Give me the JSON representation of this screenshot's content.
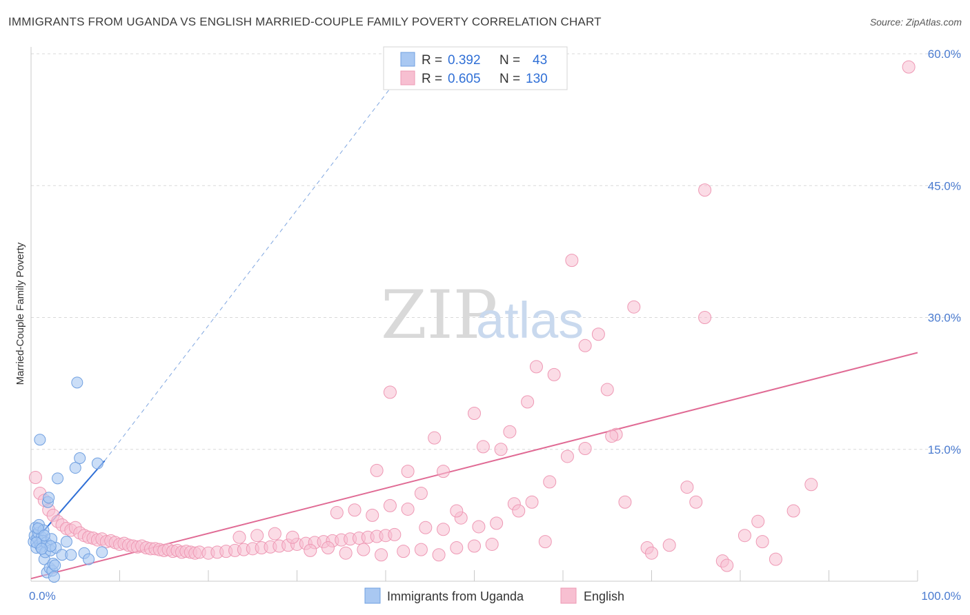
{
  "title": "IMMIGRANTS FROM UGANDA VS ENGLISH MARRIED-COUPLE FAMILY POVERTY CORRELATION CHART",
  "source": "Source: ZipAtlas.com",
  "watermark": {
    "zip": "ZIP",
    "atlas": "atlas"
  },
  "colors": {
    "uganda_fill": "#a9c8f2",
    "uganda_stroke": "#6f9fe0",
    "uganda_line": "#2f6fd6",
    "english_fill": "#f7bfd1",
    "english_stroke": "#ee98b4",
    "english_line": "#e06a94",
    "grid": "#d8d8d8",
    "tick_text": "#4a7bd0"
  },
  "legend": {
    "uganda": {
      "r_label": "R =",
      "r_value": "0.392",
      "n_label": "N =",
      "n_value": "43"
    },
    "english": {
      "r_label": "R =",
      "r_value": "0.605",
      "n_label": "N =",
      "n_value": "130"
    }
  },
  "chart_data": {
    "type": "scatter",
    "title": "IMMIGRANTS FROM UGANDA VS ENGLISH MARRIED-COUPLE FAMILY POVERTY CORRELATION CHART",
    "xlabel": "",
    "ylabel": "Married-Couple Family Poverty",
    "xlim": [
      0,
      100
    ],
    "ylim": [
      0,
      60
    ],
    "x_tick_labels": [
      "0.0%",
      "100.0%"
    ],
    "y_ticks": [
      15,
      30,
      45,
      60
    ],
    "y_tick_labels": [
      "15.0%",
      "30.0%",
      "45.0%",
      "60.0%"
    ],
    "grid": true,
    "legend_position": "top-center",
    "series": [
      {
        "name": "Immigrants from Uganda",
        "points": [
          [
            0.3,
            4.5
          ],
          [
            0.4,
            5.2
          ],
          [
            0.5,
            6.1
          ],
          [
            0.6,
            3.8
          ],
          [
            0.7,
            4.9
          ],
          [
            0.8,
            5.5
          ],
          [
            0.9,
            6.4
          ],
          [
            1.0,
            4.2
          ],
          [
            1.1,
            3.9
          ],
          [
            1.2,
            5.0
          ],
          [
            1.3,
            4.6
          ],
          [
            1.4,
            5.8
          ],
          [
            1.5,
            2.5
          ],
          [
            1.6,
            3.3
          ],
          [
            1.7,
            4.4
          ],
          [
            1.8,
            1.0
          ],
          [
            1.9,
            9.0
          ],
          [
            2.0,
            9.5
          ],
          [
            2.1,
            1.5
          ],
          [
            2.2,
            3.5
          ],
          [
            2.3,
            4.8
          ],
          [
            2.4,
            1.2
          ],
          [
            2.5,
            2.0
          ],
          [
            2.6,
            0.5
          ],
          [
            2.7,
            1.8
          ],
          [
            2.8,
            3.8
          ],
          [
            3.0,
            11.7
          ],
          [
            3.5,
            3.0
          ],
          [
            4.0,
            4.5
          ],
          [
            4.5,
            3.0
          ],
          [
            5.0,
            12.9
          ],
          [
            5.5,
            14.0
          ],
          [
            6.0,
            3.2
          ],
          [
            6.5,
            2.5
          ],
          [
            7.5,
            13.4
          ],
          [
            8.0,
            3.3
          ],
          [
            1.0,
            16.1
          ],
          [
            5.2,
            22.6
          ],
          [
            0.8,
            6.0
          ],
          [
            1.5,
            5.2
          ],
          [
            2.2,
            4.0
          ],
          [
            0.6,
            4.4
          ],
          [
            1.2,
            3.7
          ]
        ],
        "trend": {
          "solid": [
            [
              0.2,
              4.3
            ],
            [
              8.3,
              13.7
            ]
          ],
          "dashed": [
            [
              8.3,
              13.7
            ],
            [
              43.5,
              60.0
            ]
          ]
        }
      },
      {
        "name": "English",
        "points": [
          [
            0.5,
            11.8
          ],
          [
            1.0,
            10.0
          ],
          [
            1.5,
            9.2
          ],
          [
            2.0,
            8.1
          ],
          [
            2.5,
            7.5
          ],
          [
            3.0,
            6.8
          ],
          [
            3.5,
            6.4
          ],
          [
            4.0,
            6.0
          ],
          [
            4.5,
            5.8
          ],
          [
            5.0,
            6.1
          ],
          [
            5.5,
            5.5
          ],
          [
            6.0,
            5.2
          ],
          [
            6.5,
            5.0
          ],
          [
            7.0,
            4.9
          ],
          [
            7.5,
            4.7
          ],
          [
            8.0,
            4.8
          ],
          [
            8.5,
            4.5
          ],
          [
            9.0,
            4.6
          ],
          [
            9.5,
            4.4
          ],
          [
            10.0,
            4.2
          ],
          [
            10.5,
            4.3
          ],
          [
            11.0,
            4.1
          ],
          [
            11.5,
            4.0
          ],
          [
            12.0,
            3.9
          ],
          [
            12.5,
            4.0
          ],
          [
            13.0,
            3.8
          ],
          [
            13.5,
            3.7
          ],
          [
            14.0,
            3.7
          ],
          [
            14.5,
            3.6
          ],
          [
            15.0,
            3.5
          ],
          [
            15.5,
            3.6
          ],
          [
            16.0,
            3.4
          ],
          [
            16.5,
            3.5
          ],
          [
            17.0,
            3.3
          ],
          [
            17.5,
            3.4
          ],
          [
            18.0,
            3.3
          ],
          [
            18.5,
            3.2
          ],
          [
            19.0,
            3.3
          ],
          [
            20.0,
            3.2
          ],
          [
            21.0,
            3.3
          ],
          [
            22.0,
            3.4
          ],
          [
            23.0,
            3.5
          ],
          [
            24.0,
            3.6
          ],
          [
            25.0,
            3.7
          ],
          [
            26.0,
            3.8
          ],
          [
            27.0,
            3.9
          ],
          [
            28.0,
            4.0
          ],
          [
            29.0,
            4.1
          ],
          [
            30.0,
            4.2
          ],
          [
            31.0,
            4.3
          ],
          [
            32.0,
            4.4
          ],
          [
            33.0,
            4.5
          ],
          [
            34.0,
            4.6
          ],
          [
            35.0,
            4.7
          ],
          [
            36.0,
            4.8
          ],
          [
            37.0,
            4.9
          ],
          [
            38.0,
            5.0
          ],
          [
            39.0,
            5.1
          ],
          [
            40.0,
            5.2
          ],
          [
            41.0,
            5.3
          ],
          [
            23.5,
            5.0
          ],
          [
            25.5,
            5.2
          ],
          [
            27.5,
            5.4
          ],
          [
            29.5,
            5.0
          ],
          [
            31.5,
            3.5
          ],
          [
            33.5,
            3.8
          ],
          [
            35.5,
            3.2
          ],
          [
            37.5,
            3.6
          ],
          [
            39.5,
            3.0
          ],
          [
            42.0,
            3.4
          ],
          [
            44.0,
            3.6
          ],
          [
            46.0,
            3.0
          ],
          [
            48.0,
            3.8
          ],
          [
            50.0,
            4.0
          ],
          [
            52.0,
            4.2
          ],
          [
            34.5,
            7.8
          ],
          [
            36.5,
            8.1
          ],
          [
            38.5,
            7.5
          ],
          [
            40.5,
            8.6
          ],
          [
            42.5,
            8.2
          ],
          [
            44.5,
            6.1
          ],
          [
            46.5,
            5.9
          ],
          [
            48.5,
            7.2
          ],
          [
            50.5,
            6.2
          ],
          [
            52.5,
            6.6
          ],
          [
            54.5,
            8.8
          ],
          [
            56.5,
            9.0
          ],
          [
            58.5,
            11.3
          ],
          [
            60.5,
            14.2
          ],
          [
            62.5,
            15.1
          ],
          [
            39.0,
            12.6
          ],
          [
            40.5,
            21.5
          ],
          [
            42.5,
            12.5
          ],
          [
            44.0,
            10.0
          ],
          [
            45.5,
            16.3
          ],
          [
            46.5,
            12.5
          ],
          [
            48.0,
            8.0
          ],
          [
            50.0,
            19.1
          ],
          [
            51.0,
            15.3
          ],
          [
            53.0,
            15.0
          ],
          [
            54.0,
            17.0
          ],
          [
            55.0,
            8.0
          ],
          [
            56.0,
            20.4
          ],
          [
            57.0,
            24.4
          ],
          [
            58.0,
            4.5
          ],
          [
            59.0,
            23.5
          ],
          [
            61.0,
            36.5
          ],
          [
            62.5,
            26.8
          ],
          [
            64.0,
            28.1
          ],
          [
            65.0,
            21.8
          ],
          [
            66.0,
            16.7
          ],
          [
            67.0,
            9.0
          ],
          [
            68.0,
            31.2
          ],
          [
            69.5,
            3.8
          ],
          [
            70.0,
            3.2
          ],
          [
            72.0,
            4.1
          ],
          [
            74.0,
            10.7
          ],
          [
            75.0,
            9.0
          ],
          [
            76.0,
            30.0
          ],
          [
            78.0,
            2.3
          ],
          [
            80.5,
            5.2
          ],
          [
            82.0,
            6.8
          ],
          [
            84.0,
            2.5
          ],
          [
            86.0,
            8.0
          ],
          [
            88.0,
            11.0
          ],
          [
            76.0,
            44.5
          ],
          [
            78.5,
            1.8
          ],
          [
            82.5,
            4.5
          ],
          [
            65.5,
            16.5
          ],
          [
            99.0,
            58.5
          ]
        ],
        "trend": {
          "solid": [
            [
              0,
              0.3
            ],
            [
              100,
              26.0
            ]
          ]
        }
      }
    ]
  },
  "bottom_legend": {
    "uganda": "Immigrants from Uganda",
    "english": "English"
  }
}
